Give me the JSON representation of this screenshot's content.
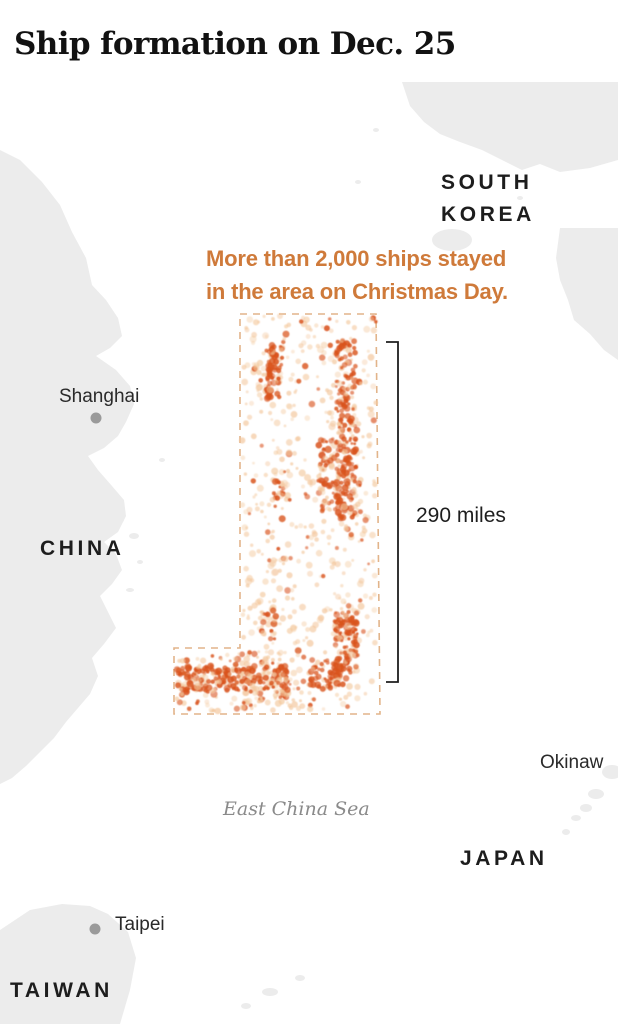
{
  "title": "Ship formation on Dec. 25",
  "annotation": {
    "line1": "More than 2,000 ships stayed",
    "line2": "in the area on Christmas Day."
  },
  "labels": {
    "countries": {
      "south_korea_line1": "SOUTH",
      "south_korea_line2": "KOREA",
      "china": "CHINA",
      "japan": "JAPAN",
      "taiwan": "TAIWAN"
    },
    "cities": {
      "shanghai": "Shanghai",
      "okinawa": "Okinaw",
      "taipei": "Taipei"
    },
    "sea": "East China Sea"
  },
  "distance_label": "290 miles",
  "colors": {
    "land": "#ececec",
    "water": "#ffffff",
    "ship_density_low": "#f3c79c",
    "ship_density_high": "#d9531c",
    "annotation_text": "#cf7a3a",
    "formation_outline": "#e2b48a"
  }
}
